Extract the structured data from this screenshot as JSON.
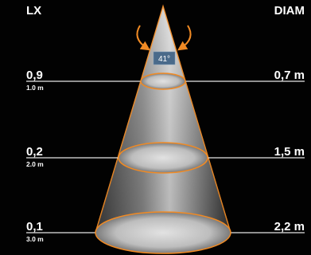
{
  "headers": {
    "left": "LX",
    "right": "DIAM"
  },
  "beam_angle": "41°",
  "levels": [
    {
      "lux": "0,9",
      "distance": "1.0 m",
      "diameter": "0,7 m"
    },
    {
      "lux": "0,2",
      "distance": "2.0 m",
      "diameter": "1,5 m"
    },
    {
      "lux": "0,1",
      "distance": "3.0 m",
      "diameter": "2,2 m"
    }
  ],
  "colors": {
    "background": "#020202",
    "cone_outline": "#f08a24",
    "guide_line": "#e6e6e6",
    "text": "#ffffff",
    "angle_box": "#4a6a8a"
  }
}
